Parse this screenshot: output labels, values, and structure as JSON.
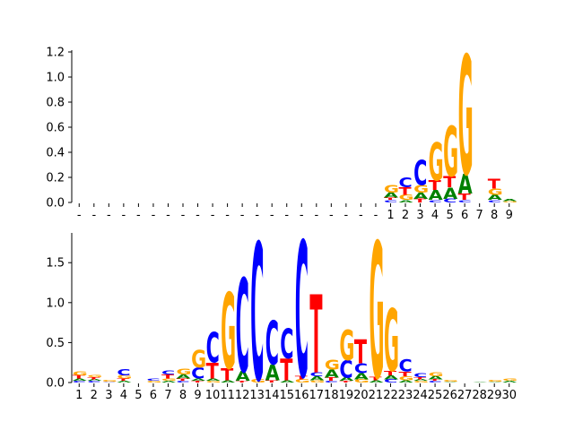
{
  "colors": {
    "A": "#008000",
    "C": "#0000ff",
    "G": "#ffa500",
    "T": "#ff0000"
  },
  "chart_data": [
    {
      "type": "sequence-logo",
      "panel": "top",
      "xlabels": [
        "-",
        "-",
        "-",
        "-",
        "-",
        "-",
        "-",
        "-",
        "-",
        "-",
        "-",
        "-",
        "-",
        "-",
        "-",
        "-",
        "-",
        "-",
        "-",
        "-",
        "-",
        "1",
        "2",
        "3",
        "4",
        "5",
        "6",
        "7",
        "8",
        "9"
      ],
      "yticks": [
        "0.0",
        "0.2",
        "0.4",
        "0.6",
        "0.8",
        "1.0",
        "1.2"
      ],
      "ylim": [
        0,
        1.2
      ],
      "positions": [
        [],
        [],
        [],
        [],
        [],
        [],
        [],
        [],
        [],
        [],
        [],
        [],
        [],
        [],
        [],
        [],
        [],
        [],
        [],
        [],
        [],
        [
          [
            "G",
            0.06
          ],
          [
            "A",
            0.04
          ],
          [
            "T",
            0.02
          ],
          [
            "C",
            0.02
          ]
        ],
        [
          [
            "C",
            0.08
          ],
          [
            "T",
            0.06
          ],
          [
            "G",
            0.04
          ],
          [
            "A",
            0.02
          ]
        ],
        [
          [
            "C",
            0.2
          ],
          [
            "G",
            0.06
          ],
          [
            "A",
            0.05
          ],
          [
            "T",
            0.03
          ]
        ],
        [
          [
            "G",
            0.3
          ],
          [
            "T",
            0.08
          ],
          [
            "A",
            0.08
          ],
          [
            "C",
            0.02
          ]
        ],
        [
          [
            "G",
            0.4
          ],
          [
            "T",
            0.09
          ],
          [
            "A",
            0.09
          ],
          [
            "C",
            0.03
          ]
        ],
        [
          [
            "G",
            0.95
          ],
          [
            "A",
            0.16
          ],
          [
            "T",
            0.05
          ],
          [
            "C",
            0.02
          ]
        ],
        [],
        [
          [
            "T",
            0.08
          ],
          [
            "G",
            0.05
          ],
          [
            "A",
            0.04
          ],
          [
            "C",
            0.02
          ]
        ],
        [
          [
            "A",
            0.02
          ],
          [
            "G",
            0.01
          ]
        ]
      ]
    },
    {
      "type": "sequence-logo",
      "panel": "bottom",
      "xlabels": [
        "1",
        "2",
        "3",
        "4",
        "5",
        "6",
        "7",
        "8",
        "9",
        "10",
        "11",
        "12",
        "13",
        "14",
        "15",
        "16",
        "17",
        "18",
        "19",
        "20",
        "21",
        "22",
        "23",
        "24",
        "25",
        "26",
        "27",
        "28",
        "29",
        "30"
      ],
      "yticks": [
        "0.0",
        "0.5",
        "1.0",
        "1.5"
      ],
      "ylim": [
        0,
        1.85
      ],
      "positions": [
        [
          [
            "G",
            0.05
          ],
          [
            "T",
            0.04
          ],
          [
            "A",
            0.03
          ],
          [
            "C",
            0.02
          ]
        ],
        [
          [
            "G",
            0.03
          ],
          [
            "T",
            0.03
          ],
          [
            "A",
            0.02
          ],
          [
            "C",
            0.02
          ]
        ],
        [
          [
            "G",
            0.02
          ],
          [
            "C",
            0.01
          ]
        ],
        [
          [
            "C",
            0.08
          ],
          [
            "G",
            0.04
          ],
          [
            "T",
            0.03
          ],
          [
            "A",
            0.02
          ]
        ],
        [],
        [
          [
            "C",
            0.03
          ],
          [
            "G",
            0.02
          ]
        ],
        [
          [
            "C",
            0.05
          ],
          [
            "T",
            0.05
          ],
          [
            "G",
            0.03
          ],
          [
            "A",
            0.02
          ]
        ],
        [
          [
            "G",
            0.07
          ],
          [
            "A",
            0.05
          ],
          [
            "T",
            0.03
          ],
          [
            "C",
            0.02
          ]
        ],
        [
          [
            "G",
            0.22
          ],
          [
            "C",
            0.14
          ],
          [
            "A",
            0.03
          ],
          [
            "T",
            0.02
          ]
        ],
        [
          [
            "C",
            0.38
          ],
          [
            "T",
            0.2
          ],
          [
            "A",
            0.03
          ],
          [
            "G",
            0.02
          ]
        ],
        [
          [
            "G",
            0.95
          ],
          [
            "T",
            0.15
          ],
          [
            "A",
            0.03
          ]
        ],
        [
          [
            "C",
            1.17
          ],
          [
            "A",
            0.12
          ],
          [
            "T",
            0.02
          ]
        ],
        [
          [
            "C",
            1.72
          ],
          [
            "G",
            0.04
          ]
        ],
        [
          [
            "C",
            0.55
          ],
          [
            "A",
            0.2
          ],
          [
            "T",
            0.03
          ]
        ],
        [
          [
            "C",
            0.37
          ],
          [
            "T",
            0.27
          ],
          [
            "A",
            0.03
          ]
        ],
        [
          [
            "C",
            1.7
          ],
          [
            "T",
            0.04
          ],
          [
            "G",
            0.04
          ]
        ],
        [
          [
            "T",
            0.98
          ],
          [
            "C",
            0.05
          ],
          [
            "A",
            0.05
          ],
          [
            "G",
            0.03
          ]
        ],
        [
          [
            "G",
            0.12
          ],
          [
            "A",
            0.1
          ],
          [
            "T",
            0.04
          ],
          [
            "C",
            0.02
          ]
        ],
        [
          [
            "G",
            0.38
          ],
          [
            "C",
            0.22
          ],
          [
            "A",
            0.04
          ],
          [
            "T",
            0.02
          ]
        ],
        [
          [
            "T",
            0.3
          ],
          [
            "C",
            0.12
          ],
          [
            "A",
            0.08
          ],
          [
            "G",
            0.04
          ]
        ],
        [
          [
            "G",
            1.7
          ],
          [
            "T",
            0.04
          ],
          [
            "A",
            0.03
          ]
        ],
        [
          [
            "G",
            0.78
          ],
          [
            "T",
            0.06
          ],
          [
            "A",
            0.05
          ],
          [
            "C",
            0.04
          ]
        ],
        [
          [
            "C",
            0.15
          ],
          [
            "T",
            0.06
          ],
          [
            "G",
            0.05
          ],
          [
            "A",
            0.03
          ]
        ],
        [
          [
            "C",
            0.05
          ],
          [
            "T",
            0.03
          ],
          [
            "A",
            0.02
          ],
          [
            "G",
            0.02
          ]
        ],
        [
          [
            "G",
            0.05
          ],
          [
            "A",
            0.04
          ],
          [
            "T",
            0.02
          ],
          [
            "C",
            0.02
          ]
        ],
        [
          [
            "G",
            0.02
          ],
          [
            "A",
            0.01
          ]
        ],
        [],
        [
          [
            "A",
            0.01
          ]
        ],
        [
          [
            "G",
            0.02
          ],
          [
            "A",
            0.01
          ]
        ],
        [
          [
            "G",
            0.03
          ],
          [
            "A",
            0.02
          ]
        ]
      ]
    }
  ]
}
